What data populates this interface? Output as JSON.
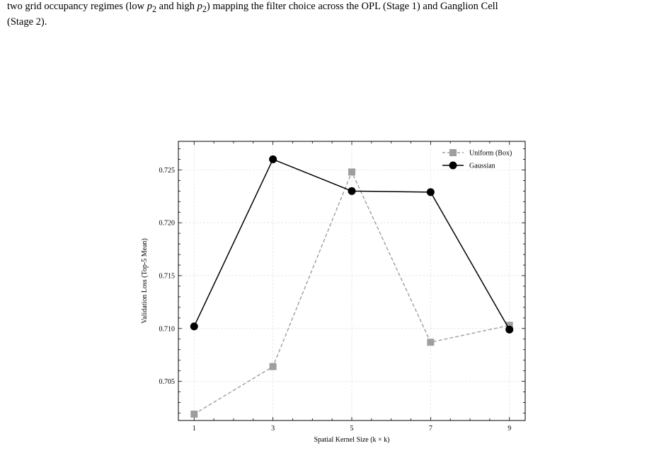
{
  "caption": {
    "line1_prefix": "two grid occupancy regimes (low ",
    "var": "p",
    "sub": "2",
    "line1_mid": " and high ",
    "line1_suffix": ") mapping the filter choice across the OPL (Stage 1) and Ganglion Cell",
    "line2": "(Stage 2)."
  },
  "chart_data": {
    "type": "line",
    "title": "",
    "xlabel": "Spatial Kernel Size (k × k)",
    "ylabel": "Validation Loss (Top-5 Mean)",
    "x": [
      1,
      3,
      5,
      7,
      9
    ],
    "xlim": [
      0.6,
      9.4
    ],
    "ylim": [
      0.7013,
      0.7277
    ],
    "xticks": [
      "1",
      "3",
      "5",
      "7",
      "9"
    ],
    "yticks": [
      "0.705",
      "0.710",
      "0.715",
      "0.720",
      "0.725"
    ],
    "grid": true,
    "legend_position": "top-right",
    "series": [
      {
        "name": "Uniform (Box)",
        "values": [
          0.7019,
          0.7064,
          0.7248,
          0.7087,
          0.7103
        ],
        "color": "#9e9e9e",
        "marker": "square",
        "linestyle": "dashed"
      },
      {
        "name": "Gaussian",
        "values": [
          0.7102,
          0.726,
          0.723,
          0.7229,
          0.7099
        ],
        "color": "#000000",
        "marker": "circle",
        "linestyle": "solid"
      }
    ]
  }
}
